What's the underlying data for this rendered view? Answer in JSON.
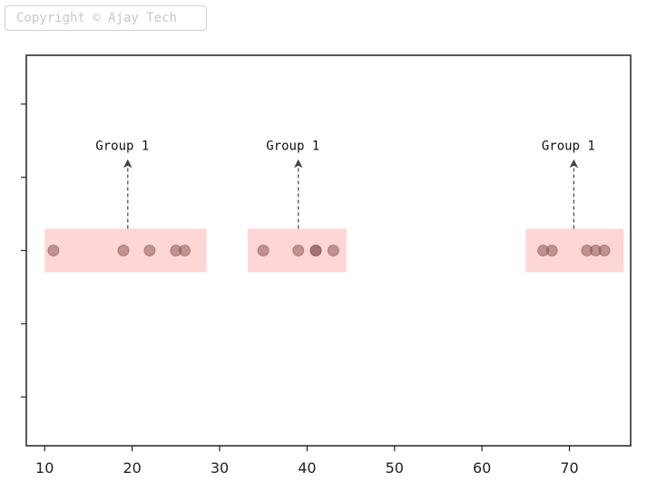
{
  "watermark": "Copyright © Ajay Tech",
  "chart_data": {
    "type": "scatter",
    "title": "",
    "xlabel": "",
    "ylabel": "",
    "xlim": [
      7.9,
      77
    ],
    "ylim": [
      -1,
      1
    ],
    "x_ticks": [
      10,
      20,
      30,
      40,
      50,
      60,
      70
    ],
    "y_tick_labels": "none",
    "points": [
      11,
      19,
      22,
      25,
      26,
      35,
      39,
      41,
      41,
      43,
      67,
      68,
      72,
      73,
      74
    ],
    "y": 0,
    "point_color": "#8b5a5a",
    "groups": [
      {
        "label": "Group 1",
        "x_range": [
          10,
          28.5
        ],
        "arrow_x": 19.5
      },
      {
        "label": "Group 1",
        "x_range": [
          33.2,
          44.5
        ],
        "arrow_x": 39
      },
      {
        "label": "Group 1",
        "x_range": [
          65,
          76.2
        ],
        "arrow_x": 70.5
      }
    ],
    "group_fill": "#ffd6d6",
    "grid": false,
    "legend": "none"
  }
}
